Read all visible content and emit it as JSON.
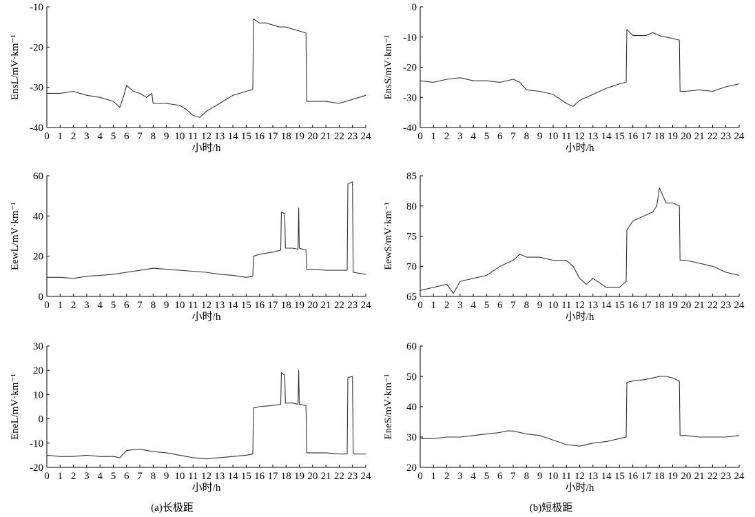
{
  "captions": {
    "left": "(a)长极距",
    "right": "(b)短极距"
  },
  "series_color": "#333333",
  "chart_data": [
    {
      "type": "line",
      "ylabel": "EnsL/mV·km⁻¹",
      "xlabel": "小时/h",
      "xlim": [
        0,
        24
      ],
      "ylim": [
        -40,
        -10
      ],
      "yticks": [
        -40,
        -30,
        -20,
        -10
      ],
      "x": [
        0,
        1,
        2,
        3,
        4,
        5,
        5.5,
        5.8,
        6,
        6.5,
        7,
        7.5,
        7.9,
        8,
        9,
        10,
        10.5,
        11,
        11.5,
        12,
        13,
        14,
        15,
        15.5,
        15.55,
        16,
        16.5,
        17,
        17.5,
        18,
        18.5,
        19,
        19.5,
        19.55,
        20,
        21,
        22,
        23,
        24
      ],
      "series": [
        {
          "values": [
            -31.5,
            -31.5,
            -31,
            -32,
            -32.5,
            -33.5,
            -35,
            -32,
            -29.5,
            -31,
            -31.5,
            -32.5,
            -31.5,
            -34,
            -34,
            -34.5,
            -35.5,
            -37,
            -37.5,
            -36,
            -34,
            -32,
            -31,
            -30.5,
            -13,
            -14,
            -14,
            -14.5,
            -15,
            -15,
            -15.5,
            -16,
            -16.5,
            -33.5,
            -33.5,
            -33.5,
            -34,
            -33,
            -32
          ]
        }
      ]
    },
    {
      "type": "line",
      "ylabel": "EewL/mV·km⁻¹",
      "xlabel": "小时/h",
      "xlim": [
        0,
        24
      ],
      "ylim": [
        0,
        60
      ],
      "yticks": [
        0,
        20,
        40,
        60
      ],
      "x": [
        0,
        1,
        2,
        3,
        4,
        5,
        6,
        7,
        8,
        9,
        10,
        11,
        12,
        13,
        14,
        15,
        15.5,
        15.55,
        16,
        17,
        17.6,
        17.65,
        17.9,
        17.95,
        18.5,
        18.9,
        18.95,
        19,
        19.5,
        19.55,
        20,
        21,
        22,
        22.6,
        22.65,
        23,
        23.05,
        24
      ],
      "series": [
        {
          "values": [
            9.5,
            9.5,
            9,
            10,
            10.5,
            11,
            12,
            13,
            14,
            13.5,
            13,
            12.5,
            12,
            11,
            10.5,
            9.5,
            10,
            20,
            21,
            22,
            23,
            42,
            41,
            24,
            24,
            23.5,
            44,
            24,
            23,
            13.5,
            13.5,
            13,
            13,
            13,
            56,
            57,
            12,
            11
          ]
        }
      ]
    },
    {
      "type": "line",
      "ylabel": "EneL/mV·km⁻¹",
      "xlabel": "小时/h",
      "xlim": [
        0,
        24
      ],
      "ylim": [
        -20,
        30
      ],
      "yticks": [
        -20,
        -10,
        0,
        10,
        20,
        30
      ],
      "x": [
        0,
        1,
        2,
        3,
        4,
        5,
        5.5,
        6,
        7,
        8,
        9,
        10,
        11,
        12,
        13,
        14,
        15,
        15.5,
        15.55,
        16,
        17,
        17.6,
        17.65,
        17.9,
        17.95,
        18.5,
        18.9,
        18.95,
        19,
        19.5,
        19.55,
        20,
        21,
        22,
        22.6,
        22.65,
        23,
        23.05,
        24
      ],
      "series": [
        {
          "values": [
            -15,
            -15.5,
            -15.5,
            -15,
            -15.5,
            -15.5,
            -16,
            -13,
            -12.5,
            -13.5,
            -14,
            -15,
            -16,
            -16.5,
            -16,
            -15.5,
            -15,
            -14.5,
            4.5,
            5,
            5.5,
            6,
            19,
            18,
            6.5,
            6.5,
            6,
            20,
            6,
            5.5,
            -14,
            -14,
            -14,
            -14.5,
            -14.5,
            17,
            17.5,
            -14.5,
            -14.5
          ]
        }
      ]
    },
    {
      "type": "line",
      "ylabel": "EnsS/mV·km⁻¹",
      "xlabel": "小时/h",
      "xlim": [
        0,
        24
      ],
      "ylim": [
        -40,
        0
      ],
      "yticks": [
        -40,
        -30,
        -20,
        -10,
        0
      ],
      "x": [
        0,
        1,
        2,
        3,
        4,
        5,
        6,
        7,
        7.5,
        8,
        9,
        10,
        10.5,
        11,
        11.5,
        12,
        13,
        14,
        15,
        15.5,
        15.55,
        16,
        17,
        17.5,
        18,
        18.5,
        19,
        19.5,
        19.55,
        20,
        21,
        22,
        23,
        24
      ],
      "series": [
        {
          "values": [
            -24.5,
            -25,
            -24,
            -23.5,
            -24.5,
            -24.5,
            -25,
            -24,
            -25,
            -27.5,
            -28,
            -29,
            -30.5,
            -32,
            -33,
            -31,
            -29,
            -27,
            -25.5,
            -25,
            -7.5,
            -9.5,
            -9.5,
            -8.5,
            -9.5,
            -10,
            -10.5,
            -11,
            -28,
            -28,
            -27.5,
            -28,
            -26.5,
            -25.5
          ]
        }
      ]
    },
    {
      "type": "line",
      "ylabel": "EewS/mV·km⁻¹",
      "xlabel": "小时/h",
      "xlim": [
        0,
        24
      ],
      "ylim": [
        65,
        85
      ],
      "yticks": [
        65,
        70,
        75,
        80,
        85
      ],
      "x": [
        0,
        1,
        2,
        2.5,
        3,
        4,
        5,
        6,
        7,
        7.5,
        8,
        9,
        10,
        11,
        11.5,
        12,
        12.5,
        13,
        14,
        15,
        15.5,
        15.55,
        16,
        16.5,
        17,
        17.5,
        17.8,
        18,
        18.5,
        19,
        19.5,
        19.55,
        20,
        21,
        22,
        23,
        24
      ],
      "series": [
        {
          "values": [
            66,
            66.5,
            67,
            65.5,
            67.5,
            68,
            68.5,
            70,
            71,
            72,
            71.5,
            71.5,
            71,
            71,
            70,
            68,
            67,
            68,
            66.5,
            66.5,
            67.5,
            76,
            77.5,
            78,
            78.5,
            79,
            80,
            83,
            80.5,
            80.5,
            80,
            71,
            71,
            70.5,
            70,
            69,
            68.5
          ]
        }
      ]
    },
    {
      "type": "line",
      "ylabel": "EneS/mV·km⁻¹",
      "xlabel": "小时/h",
      "xlim": [
        0,
        24
      ],
      "ylim": [
        20,
        60
      ],
      "yticks": [
        20,
        30,
        40,
        50,
        60
      ],
      "x": [
        0,
        1,
        2,
        3,
        4,
        5,
        6,
        6.5,
        7,
        8,
        9,
        10,
        11,
        12,
        13,
        14,
        15,
        15.5,
        15.55,
        16,
        17,
        17.5,
        18,
        18.5,
        19,
        19.5,
        19.55,
        20,
        21,
        22,
        23,
        24
      ],
      "series": [
        {
          "values": [
            29.5,
            29.5,
            30,
            30,
            30.5,
            31,
            31.5,
            32,
            32,
            31,
            30.5,
            29,
            27.5,
            27,
            28,
            28.5,
            29.5,
            30,
            48,
            48.5,
            49,
            49.5,
            50,
            50,
            49.5,
            48.5,
            30.5,
            30.5,
            30,
            30,
            30,
            30.5
          ]
        }
      ]
    }
  ]
}
